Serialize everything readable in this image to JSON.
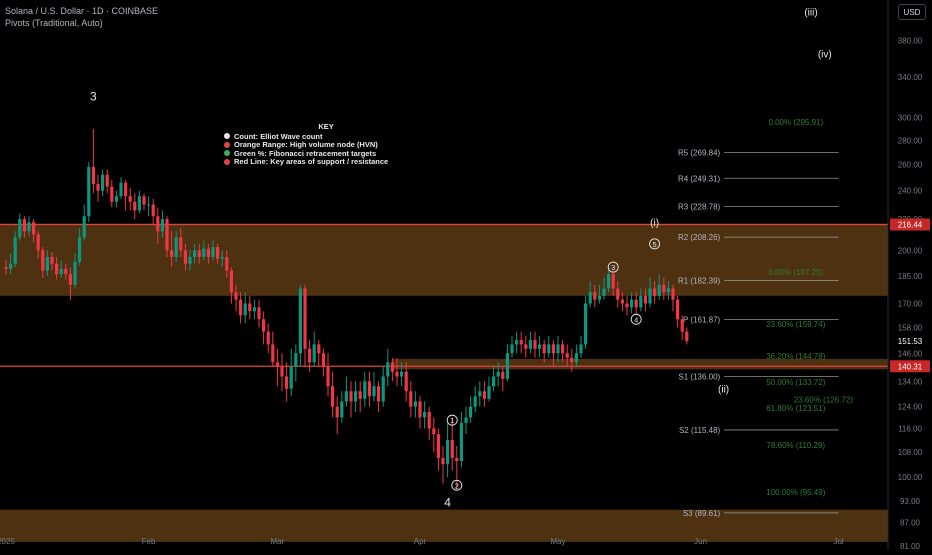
{
  "header": {
    "symbol_line": "Solana / U.S. Dollar · 1D · COINBASE",
    "indicator_line": "Pivots (Traditional, Auto)",
    "currency_button": "USD"
  },
  "key": {
    "title": "KEY",
    "items": [
      {
        "label": "Count: Elliot Wave count",
        "color": "#e6e6e6"
      },
      {
        "label": "Orange Range: High volume node (HVN)",
        "color": "#e0433f"
      },
      {
        "label": "Green %: Fibonacci retracement targets",
        "color": "#3fae5a"
      },
      {
        "label": "Red Line: Key areas of support / resistance",
        "color": "#e0433f"
      }
    ]
  },
  "colors": {
    "up": "#089981",
    "down": "#f23645",
    "hvn": "#5a3a14",
    "red_line": "#e0433f",
    "fib": "#2e7d32",
    "pivot": "#b2b5be",
    "label": "#e8e8e8"
  },
  "chart_data": {
    "type": "candlestick",
    "scale": "log",
    "ylim": [
      80,
      430
    ],
    "y_ticks": [
      "380.00",
      "340.00",
      "300.00",
      "280.00",
      "260.00",
      "240.00",
      "220.00",
      "200.00",
      "185.00",
      "170.00",
      "158.00",
      "146.00",
      "134.00",
      "124.00",
      "116.00",
      "108.00",
      "100.00",
      "93.00",
      "87.00",
      "81.00"
    ],
    "x_ticks": [
      "2025",
      "Feb",
      "Mar",
      "Apr",
      "May",
      "Jun",
      "Jul"
    ],
    "x_tick_days": [
      0,
      31,
      59,
      90,
      120,
      151,
      181
    ],
    "current_price": {
      "label": "151.53",
      "value": 151.53,
      "color": "#f23645"
    },
    "price_tags": [
      {
        "label": "216.44",
        "value": 216.44,
        "color": "#c62828"
      },
      {
        "label": "140.31",
        "value": 140.31,
        "color": "#c62828"
      }
    ],
    "hvn_zones": [
      [
        174,
        217
      ],
      [
        139,
        143.5
      ],
      [
        82,
        90.5
      ]
    ],
    "red_lines": [
      216.44,
      140.31
    ],
    "pivots": [
      {
        "label": "R5 (269.84)",
        "value": 269.84
      },
      {
        "label": "R4 (249.31)",
        "value": 249.31
      },
      {
        "label": "R3 (228.78)",
        "value": 228.78
      },
      {
        "label": "R2 (208.26)",
        "value": 208.26
      },
      {
        "label": "R1 (182.39)",
        "value": 182.39
      },
      {
        "label": "P (161.87)",
        "value": 161.87
      },
      {
        "label": "S1 (136.00)",
        "value": 136.0
      },
      {
        "label": "S2 (115.48)",
        "value": 115.48
      },
      {
        "label": "S3 (89.61)",
        "value": 89.61
      }
    ],
    "pivot_day_range": [
      147,
      181
    ],
    "fib_labels": [
      {
        "label": "0.00% (295.91)",
        "value": 295.91,
        "day": 163
      },
      {
        "label": "0.00% (187.25)",
        "value": 187.25,
        "day": 163
      },
      {
        "label": "23.60% (159.74)",
        "value": 159.74,
        "day": 163
      },
      {
        "label": "36.20% (144.78)",
        "value": 144.78,
        "day": 163
      },
      {
        "label": "50.00% (133.72)",
        "value": 133.72,
        "day": 163
      },
      {
        "label": "23.60% (126.72)",
        "value": 126.72,
        "day": 169
      },
      {
        "label": "61.80% (123.51)",
        "value": 123.51,
        "day": 163
      },
      {
        "label": "78.60% (110.29)",
        "value": 110.29,
        "day": 163
      },
      {
        "label": "100.00% (95.49)",
        "value": 95.49,
        "day": 163
      }
    ],
    "wave_labels": [
      {
        "label": "3",
        "day": 19,
        "value": 320
      },
      {
        "label": "4",
        "day": 96,
        "value": 92.5
      },
      {
        "label": "(iii)",
        "day": 175,
        "value": 415
      },
      {
        "label": "(iv)",
        "day": 178,
        "value": 365
      },
      {
        "label": "(i)",
        "day": 141,
        "value": 218
      },
      {
        "label": "(ii)",
        "day": 156,
        "value": 131
      }
    ],
    "wave_circles": [
      {
        "label": "1",
        "day": 97,
        "value": 119
      },
      {
        "label": "2",
        "day": 98,
        "value": 97.5
      },
      {
        "label": "3",
        "day": 132,
        "value": 190
      },
      {
        "label": "4",
        "day": 137,
        "value": 162
      },
      {
        "label": "5",
        "day": 141,
        "value": 204
      }
    ],
    "candles": [
      [
        0,
        190,
        189,
        194,
        186
      ],
      [
        1,
        189,
        192,
        198,
        186
      ],
      [
        2,
        192,
        208,
        212,
        190
      ],
      [
        3,
        208,
        220,
        224,
        206
      ],
      [
        4,
        220,
        212,
        222,
        208
      ],
      [
        5,
        212,
        218,
        222,
        209
      ],
      [
        6,
        218,
        210,
        220,
        205
      ],
      [
        7,
        210,
        200,
        212,
        195
      ],
      [
        8,
        200,
        188,
        202,
        184
      ],
      [
        9,
        188,
        196,
        200,
        185
      ],
      [
        10,
        196,
        192,
        199,
        188
      ],
      [
        11,
        192,
        186,
        196,
        183
      ],
      [
        12,
        186,
        189,
        194,
        184
      ],
      [
        13,
        189,
        186,
        192,
        183
      ],
      [
        14,
        186,
        180,
        190,
        172
      ],
      [
        15,
        180,
        193,
        198,
        178
      ],
      [
        16,
        193,
        208,
        214,
        191
      ],
      [
        17,
        208,
        222,
        230,
        206
      ],
      [
        18,
        222,
        258,
        262,
        218
      ],
      [
        19,
        258,
        245,
        290,
        238
      ],
      [
        20,
        245,
        240,
        252,
        232
      ],
      [
        21,
        240,
        252,
        256,
        236
      ],
      [
        22,
        252,
        243,
        256,
        238
      ],
      [
        23,
        243,
        232,
        248,
        228
      ],
      [
        24,
        232,
        236,
        240,
        228
      ],
      [
        25,
        236,
        246,
        250,
        234
      ],
      [
        26,
        246,
        236,
        248,
        226
      ],
      [
        27,
        236,
        232,
        242,
        226
      ],
      [
        28,
        232,
        226,
        238,
        220
      ],
      [
        29,
        226,
        236,
        240,
        224
      ],
      [
        30,
        236,
        230,
        238,
        226
      ],
      [
        31,
        230,
        230,
        236,
        222
      ],
      [
        32,
        230,
        222,
        234,
        216
      ],
      [
        33,
        222,
        212,
        228,
        204
      ],
      [
        34,
        212,
        220,
        226,
        208
      ],
      [
        35,
        220,
        200,
        222,
        196
      ],
      [
        36,
        200,
        196,
        212,
        190
      ],
      [
        37,
        196,
        208,
        212,
        193
      ],
      [
        38,
        208,
        200,
        214,
        196
      ],
      [
        39,
        200,
        192,
        204,
        188
      ],
      [
        40,
        192,
        196,
        200,
        188
      ],
      [
        41,
        196,
        200,
        204,
        192
      ],
      [
        42,
        200,
        196,
        204,
        192
      ],
      [
        43,
        196,
        201,
        206,
        194
      ],
      [
        44,
        201,
        196,
        204,
        192
      ],
      [
        45,
        196,
        202,
        206,
        194
      ],
      [
        46,
        202,
        195,
        204,
        192
      ],
      [
        47,
        195,
        196,
        200,
        190
      ],
      [
        48,
        196,
        188,
        200,
        184
      ],
      [
        49,
        188,
        176,
        190,
        170
      ],
      [
        50,
        176,
        172,
        180,
        166
      ],
      [
        51,
        172,
        164,
        176,
        160
      ],
      [
        52,
        164,
        170,
        176,
        160
      ],
      [
        53,
        170,
        166,
        174,
        162
      ],
      [
        54,
        166,
        168,
        172,
        162
      ],
      [
        55,
        168,
        162,
        172,
        158
      ],
      [
        56,
        162,
        156,
        166,
        150
      ],
      [
        57,
        156,
        150,
        160,
        146
      ],
      [
        58,
        150,
        142,
        156,
        140
      ],
      [
        59,
        142,
        140,
        148,
        132
      ],
      [
        60,
        140,
        136,
        146,
        130
      ],
      [
        61,
        136,
        131,
        142,
        126
      ],
      [
        62,
        131,
        140,
        148,
        128
      ],
      [
        63,
        140,
        146,
        150,
        134
      ],
      [
        64,
        146,
        178,
        180,
        140
      ],
      [
        65,
        178,
        148,
        180,
        140
      ],
      [
        66,
        148,
        142,
        152,
        138
      ],
      [
        67,
        142,
        150,
        156,
        140
      ],
      [
        68,
        150,
        146,
        152,
        140
      ],
      [
        69,
        146,
        140,
        148,
        136
      ],
      [
        70,
        140,
        132,
        146,
        128
      ],
      [
        71,
        132,
        124,
        138,
        120
      ],
      [
        72,
        124,
        120,
        128,
        114
      ],
      [
        73,
        120,
        126,
        130,
        118
      ],
      [
        74,
        126,
        130,
        136,
        124
      ],
      [
        75,
        130,
        126,
        134,
        120
      ],
      [
        76,
        126,
        130,
        134,
        122
      ],
      [
        77,
        130,
        127,
        134,
        122
      ],
      [
        78,
        127,
        134,
        138,
        124
      ],
      [
        79,
        134,
        128,
        138,
        124
      ],
      [
        80,
        128,
        132,
        138,
        126
      ],
      [
        81,
        132,
        126,
        134,
        122
      ],
      [
        82,
        126,
        136,
        140,
        124
      ],
      [
        83,
        136,
        142,
        148,
        132
      ],
      [
        84,
        142,
        138,
        144,
        134
      ],
      [
        85,
        138,
        136,
        144,
        132
      ],
      [
        86,
        136,
        138,
        142,
        132
      ],
      [
        87,
        138,
        130,
        142,
        126
      ],
      [
        88,
        130,
        124,
        134,
        120
      ],
      [
        89,
        124,
        126,
        130,
        120
      ],
      [
        90,
        126,
        120,
        128,
        116
      ],
      [
        91,
        120,
        122,
        126,
        116
      ],
      [
        92,
        122,
        116,
        124,
        112
      ],
      [
        93,
        116,
        114,
        120,
        108
      ],
      [
        94,
        114,
        106,
        116,
        102
      ],
      [
        95,
        106,
        104,
        110,
        98
      ],
      [
        96,
        104,
        112,
        118,
        100
      ],
      [
        97,
        112,
        106,
        120,
        102
      ],
      [
        98,
        106,
        105,
        110,
        96
      ],
      [
        99,
        105,
        118,
        122,
        103
      ],
      [
        100,
        118,
        120,
        124,
        114
      ],
      [
        101,
        120,
        124,
        128,
        118
      ],
      [
        102,
        124,
        128,
        132,
        122
      ],
      [
        103,
        128,
        130,
        134,
        124
      ],
      [
        104,
        130,
        127,
        134,
        124
      ],
      [
        105,
        127,
        132,
        136,
        126
      ],
      [
        106,
        132,
        136,
        140,
        130
      ],
      [
        107,
        136,
        138,
        142,
        132
      ],
      [
        108,
        138,
        135,
        140,
        130
      ],
      [
        109,
        135,
        146,
        150,
        134
      ],
      [
        110,
        146,
        150,
        154,
        144
      ],
      [
        111,
        150,
        152,
        156,
        146
      ],
      [
        112,
        152,
        150,
        156,
        146
      ],
      [
        113,
        150,
        148,
        154,
        144
      ],
      [
        114,
        148,
        152,
        156,
        146
      ],
      [
        115,
        152,
        148,
        156,
        144
      ],
      [
        116,
        148,
        150,
        154,
        144
      ],
      [
        117,
        150,
        146,
        152,
        142
      ],
      [
        118,
        146,
        150,
        154,
        144
      ],
      [
        119,
        150,
        146,
        152,
        140
      ],
      [
        120,
        146,
        150,
        154,
        142
      ],
      [
        121,
        150,
        146,
        152,
        142
      ],
      [
        122,
        146,
        144,
        150,
        140
      ],
      [
        123,
        144,
        142,
        148,
        138
      ],
      [
        124,
        142,
        146,
        150,
        140
      ],
      [
        125,
        146,
        150,
        154,
        144
      ],
      [
        126,
        150,
        170,
        174,
        148
      ],
      [
        127,
        170,
        176,
        182,
        168
      ],
      [
        128,
        176,
        172,
        180,
        168
      ],
      [
        129,
        172,
        174,
        180,
        170
      ],
      [
        130,
        174,
        178,
        184,
        172
      ],
      [
        131,
        178,
        186,
        190,
        176
      ],
      [
        132,
        186,
        178,
        188,
        174
      ],
      [
        133,
        178,
        172,
        182,
        168
      ],
      [
        134,
        172,
        170,
        176,
        166
      ],
      [
        135,
        170,
        168,
        174,
        164
      ],
      [
        136,
        168,
        172,
        176,
        165
      ],
      [
        137,
        172,
        168,
        176,
        164
      ],
      [
        138,
        168,
        174,
        178,
        166
      ],
      [
        139,
        174,
        170,
        178,
        166
      ],
      [
        140,
        170,
        178,
        184,
        168
      ],
      [
        141,
        178,
        174,
        182,
        170
      ],
      [
        142,
        174,
        180,
        186,
        172
      ],
      [
        143,
        180,
        176,
        184,
        172
      ],
      [
        144,
        176,
        178,
        182,
        172
      ],
      [
        145,
        178,
        172,
        180,
        166
      ],
      [
        146,
        172,
        162,
        174,
        158
      ],
      [
        147,
        162,
        156,
        164,
        152
      ],
      [
        148,
        156,
        151.53,
        158,
        150
      ]
    ]
  }
}
